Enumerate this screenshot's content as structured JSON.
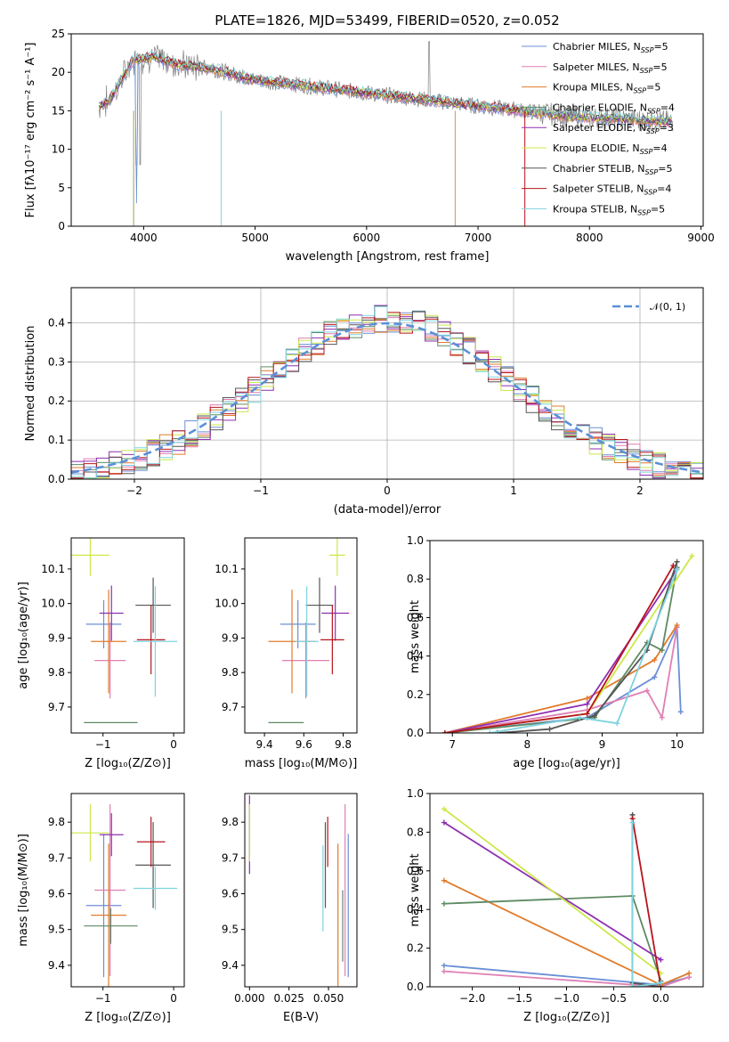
{
  "title": "PLATE=1826, MJD=53499, FIBERID=0520, z=0.052",
  "colors": [
    "#6b8fd6",
    "#e07fb4",
    "#e07b2a",
    "#5e8a64",
    "#8e2fb0",
    "#cbe84a",
    "#555555",
    "#b8141c",
    "#7fd3df"
  ],
  "legend": [
    {
      "label": "Chabrier MILES, N",
      "sub": "SSP",
      "tail": "=5"
    },
    {
      "label": "Salpeter MILES, N",
      "sub": "SSP",
      "tail": "=5"
    },
    {
      "label": "Kroupa MILES, N",
      "sub": "SSP",
      "tail": "=5"
    },
    {
      "label": "Chabrier ELODIE, N",
      "sub": "SSP",
      "tail": "=4"
    },
    {
      "label": "Salpeter ELODIE, N",
      "sub": "SSP",
      "tail": "=3"
    },
    {
      "label": "Kroupa ELODIE, N",
      "sub": "SSP",
      "tail": "=4"
    },
    {
      "label": "Chabrier STELIB, N",
      "sub": "SSP",
      "tail": "=5"
    },
    {
      "label": "Salpeter STELIB, N",
      "sub": "SSP",
      "tail": "=4"
    },
    {
      "label": "Kroupa STELIB, N",
      "sub": "SSP",
      "tail": "=5"
    }
  ],
  "chart_data": [
    {
      "id": "spectrum",
      "type": "line",
      "xlabel": "wavelength [Angstrom, rest frame]",
      "ylabel": "Flux [fλ10⁻¹⁷ erg cm⁻² s⁻¹ A⁻¹]",
      "xlim": [
        3350,
        9020
      ],
      "ylim": [
        0,
        25
      ],
      "xticks": [
        "4000",
        "5000",
        "6000",
        "7000",
        "8000",
        "9000"
      ],
      "yticks": [
        "0",
        "5",
        "10",
        "15",
        "20",
        "25"
      ],
      "continuum": {
        "x": [
          3600,
          3700,
          3900,
          4100,
          4300,
          4600,
          5000,
          5500,
          6000,
          6500,
          7000,
          7400,
          7800,
          8200,
          8700
        ],
        "y": [
          15.5,
          16.5,
          21.5,
          22.0,
          21.0,
          20.5,
          19.0,
          18.2,
          17.3,
          16.5,
          15.6,
          15.0,
          14.3,
          14.0,
          13.6
        ]
      },
      "grid": false
    },
    {
      "id": "residuals",
      "type": "histogram",
      "xlabel": "(data-model)/error",
      "ylabel": "Normed distribution",
      "xlim": [
        -2.5,
        2.5
      ],
      "ylim": [
        0,
        0.49
      ],
      "xticks": [
        "−2",
        "−1",
        "0",
        "1",
        "2"
      ],
      "yticks": [
        "0.0",
        "0.1",
        "0.2",
        "0.3",
        "0.4"
      ],
      "reference": "𝒩(0, 1)",
      "grid": true
    },
    {
      "id": "age-vs-Z",
      "type": "errorbar",
      "xlabel": "Z [log₁₀(Z/Z⊙)]",
      "ylabel": "age  [log₁₀(age/yr)]",
      "xlim": [
        -1.45,
        0.15
      ],
      "ylim": [
        9.625,
        10.19
      ],
      "xticks": [
        "−1",
        "0"
      ],
      "yticks": [
        "9.7",
        "9.8",
        "9.9",
        "10.0",
        "10.1"
      ],
      "points": [
        {
          "x": -0.99,
          "y": 9.94,
          "xe": 0.25,
          "ye": 0.07
        },
        {
          "x": -0.9,
          "y": 9.835,
          "xe": 0.22,
          "ye": 0.11
        },
        {
          "x": -0.92,
          "y": 9.89,
          "xe": 0.25,
          "ye": 0.15
        },
        {
          "x": -0.89,
          "y": 9.655,
          "xe": 0.38,
          "ye": 0.0
        },
        {
          "x": -0.88,
          "y": 9.972,
          "xe": 0.17,
          "ye": 0.08
        },
        {
          "x": -1.18,
          "y": 10.14,
          "xe": 0.27,
          "ye": 0.06
        },
        {
          "x": -0.29,
          "y": 9.995,
          "xe": 0.25,
          "ye": 0.08
        },
        {
          "x": -0.32,
          "y": 9.895,
          "xe": 0.2,
          "ye": 0.1
        },
        {
          "x": -0.26,
          "y": 9.89,
          "xe": 0.31,
          "ye": 0.16
        }
      ]
    },
    {
      "id": "age-vs-mass",
      "type": "errorbar",
      "xlabel": "mass [log₁₀(M/M⊙)]",
      "ylabel": "",
      "xlim": [
        9.3,
        9.87
      ],
      "ylim": [
        9.625,
        10.19
      ],
      "xticks": [
        "9.4",
        "9.6",
        "9.8"
      ],
      "yticks": [
        "9.7",
        "9.8",
        "9.9",
        "10.0",
        "10.1"
      ],
      "points": [
        {
          "x": 9.57,
          "y": 9.94,
          "xe": 0.09,
          "ye": 0.07
        },
        {
          "x": 9.61,
          "y": 9.835,
          "xe": 0.12,
          "ye": 0.11
        },
        {
          "x": 9.54,
          "y": 9.89,
          "xe": 0.12,
          "ye": 0.15
        },
        {
          "x": 9.51,
          "y": 9.655,
          "xe": 0.09,
          "ye": 0.0
        },
        {
          "x": 9.76,
          "y": 9.972,
          "xe": 0.07,
          "ye": 0.08
        },
        {
          "x": 9.77,
          "y": 10.14,
          "xe": 0.04,
          "ye": 0.06
        },
        {
          "x": 9.68,
          "y": 9.995,
          "xe": 0.07,
          "ye": 0.08
        },
        {
          "x": 9.745,
          "y": 9.895,
          "xe": 0.06,
          "ye": 0.1
        },
        {
          "x": 9.615,
          "y": 9.89,
          "xe": 0.06,
          "ye": 0.16
        }
      ]
    },
    {
      "id": "massweight-vs-age",
      "type": "line",
      "xlabel": "age  [log₁₀(age/yr)]",
      "ylabel": "mass weight",
      "xlim": [
        6.7,
        10.35
      ],
      "ylim": [
        0,
        1.0
      ],
      "xticks": [
        "7",
        "8",
        "9",
        "10"
      ],
      "yticks": [
        "0.0",
        "0.2",
        "0.4",
        "0.6",
        "0.8",
        "1.0"
      ],
      "series": [
        {
          "x": [
            6.9,
            8.8,
            9.7,
            10.0,
            10.05
          ],
          "y": [
            0.0,
            0.08,
            0.29,
            0.55,
            0.11
          ]
        },
        {
          "x": [
            6.9,
            8.8,
            9.6,
            9.8,
            10.0
          ],
          "y": [
            0.0,
            0.12,
            0.22,
            0.08,
            0.55
          ]
        },
        {
          "x": [
            6.9,
            8.8,
            9.7,
            10.0
          ],
          "y": [
            0.0,
            0.18,
            0.38,
            0.56
          ]
        },
        {
          "x": [
            6.9,
            8.9,
            9.6,
            9.8,
            10.0
          ],
          "y": [
            0.0,
            0.08,
            0.47,
            0.43,
            0.86
          ]
        },
        {
          "x": [
            6.9,
            8.8,
            10.0
          ],
          "y": [
            0.0,
            0.15,
            0.85
          ]
        },
        {
          "x": [
            6.9,
            8.8,
            10.2
          ],
          "y": [
            0.0,
            0.1,
            0.92
          ]
        },
        {
          "x": [
            7.6,
            8.3,
            8.9,
            9.6,
            10.0
          ],
          "y": [
            0.0,
            0.02,
            0.09,
            0.43,
            0.89
          ]
        },
        {
          "x": [
            6.9,
            8.8,
            9.95
          ],
          "y": [
            0.0,
            0.1,
            0.87
          ]
        },
        {
          "x": [
            7.5,
            8.7,
            9.2,
            10.0
          ],
          "y": [
            0.0,
            0.08,
            0.05,
            0.85
          ]
        }
      ]
    },
    {
      "id": "mass-vs-Z",
      "type": "errorbar",
      "xlabel": "Z [log₁₀(Z/Z⊙)]",
      "ylabel": "mass [log₁₀(M/M⊙)]",
      "xlim": [
        -1.45,
        0.15
      ],
      "ylim": [
        9.34,
        9.88
      ],
      "xticks": [
        "−1",
        "0"
      ],
      "yticks": [
        "9.4",
        "9.5",
        "9.6",
        "9.7",
        "9.8"
      ],
      "points": [
        {
          "x": -0.99,
          "y": 9.567,
          "xe": 0.25,
          "ye": 0.2
        },
        {
          "x": -0.9,
          "y": 9.61,
          "xe": 0.22,
          "ye": 0.24
        },
        {
          "x": -0.92,
          "y": 9.54,
          "xe": 0.25,
          "ye": 0.2
        },
        {
          "x": -0.89,
          "y": 9.51,
          "xe": 0.38,
          "ye": 0.05
        },
        {
          "x": -0.88,
          "y": 9.765,
          "xe": 0.17,
          "ye": 0.06
        },
        {
          "x": -1.18,
          "y": 9.77,
          "xe": 0.27,
          "ye": 0.08
        },
        {
          "x": -0.29,
          "y": 9.68,
          "xe": 0.25,
          "ye": 0.12
        },
        {
          "x": -0.32,
          "y": 9.745,
          "xe": 0.2,
          "ye": 0.07
        },
        {
          "x": -0.26,
          "y": 9.615,
          "xe": 0.31,
          "ye": 0.06
        }
      ]
    },
    {
      "id": "mass-vs-ebv",
      "type": "errorbar",
      "xlabel": "E(B-V)",
      "ylabel": "",
      "xlim": [
        -0.003,
        0.068
      ],
      "ylim": [
        9.34,
        9.88
      ],
      "xticks": [
        "0.000",
        "0.025",
        "0.050"
      ],
      "yticks": [
        "9.4",
        "9.5",
        "9.6",
        "9.7",
        "9.8"
      ],
      "points": [
        {
          "x": 0.0625,
          "y": 9.567,
          "xe": 0.0,
          "ye": 0.2
        },
        {
          "x": 0.0605,
          "y": 9.61,
          "xe": 0.0,
          "ye": 0.24
        },
        {
          "x": 0.056,
          "y": 9.54,
          "xe": 0.0,
          "ye": 0.2
        },
        {
          "x": 0.059,
          "y": 9.51,
          "xe": 0.0,
          "ye": 0.1
        },
        {
          "x": 0.0,
          "y": 9.765,
          "xe": 0.0,
          "ye": 0.11
        },
        {
          "x": 0.0,
          "y": 9.77,
          "xe": 0.0,
          "ye": 0.08
        },
        {
          "x": 0.048,
          "y": 9.68,
          "xe": 0.0,
          "ye": 0.12
        },
        {
          "x": 0.0495,
          "y": 9.745,
          "xe": 0.0,
          "ye": 0.07
        },
        {
          "x": 0.0465,
          "y": 9.615,
          "xe": 0.0,
          "ye": 0.12
        }
      ]
    },
    {
      "id": "massweight-vs-Z",
      "type": "line",
      "xlabel": "Z [log₁₀(Z/Z⊙)]",
      "ylabel": "mass weight",
      "xlim": [
        -2.45,
        0.45
      ],
      "ylim": [
        0,
        1.0
      ],
      "xticks": [
        "−2.0",
        "−1.5",
        "−1.0",
        "−0.5",
        "0.0"
      ],
      "yticks": [
        "0.0",
        "0.2",
        "0.4",
        "0.6",
        "0.8",
        "1.0"
      ],
      "series": [
        {
          "x": [
            -2.3,
            0.0,
            0.3
          ],
          "y": [
            0.11,
            0.01,
            0.05
          ]
        },
        {
          "x": [
            -2.3,
            0.0,
            0.3
          ],
          "y": [
            0.08,
            0.0,
            0.05
          ]
        },
        {
          "x": [
            -2.3,
            0.0,
            0.3
          ],
          "y": [
            0.55,
            0.01,
            0.07
          ]
        },
        {
          "x": [
            -2.3,
            -0.3,
            0.0
          ],
          "y": [
            0.43,
            0.47,
            0.03
          ]
        },
        {
          "x": [
            -2.3,
            0.0
          ],
          "y": [
            0.85,
            0.14
          ]
        },
        {
          "x": [
            -2.3,
            0.0
          ],
          "y": [
            0.92,
            0.07
          ]
        },
        {
          "x": [
            -0.3,
            -0.3,
            0.0
          ],
          "y": [
            0.89,
            0.02,
            0.0
          ]
        },
        {
          "x": [
            -0.3,
            0.0
          ],
          "y": [
            0.87,
            0.0
          ]
        },
        {
          "x": [
            -0.3,
            -0.3,
            0.0
          ],
          "y": [
            0.85,
            0.0,
            0.02
          ]
        }
      ]
    }
  ]
}
